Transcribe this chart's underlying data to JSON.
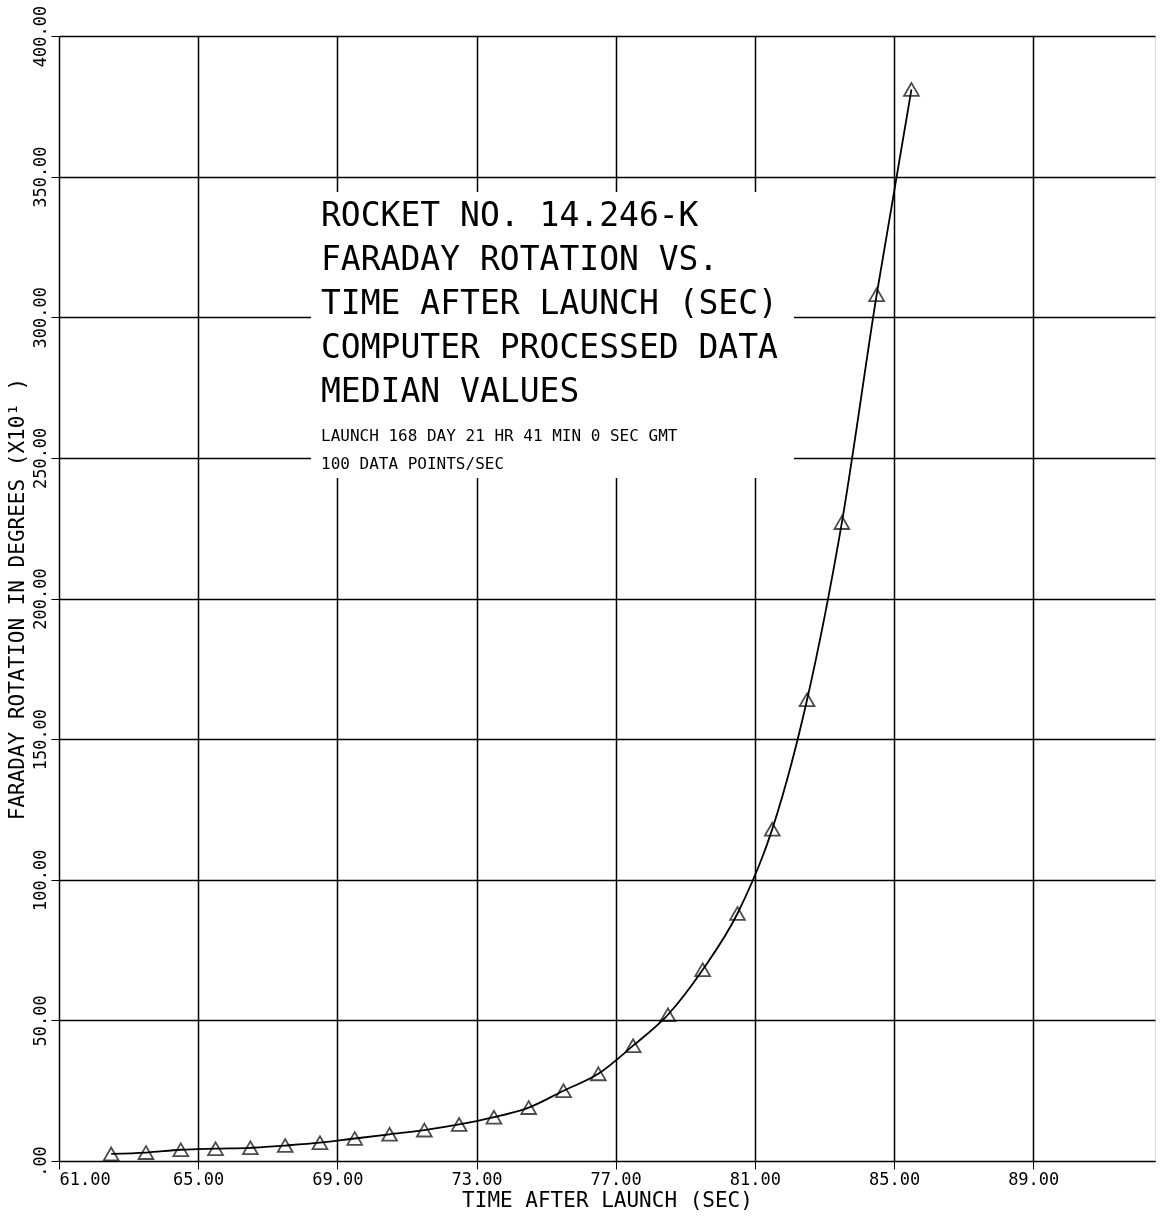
{
  "chart_data": {
    "type": "line",
    "xlabel": "TIME AFTER LAUNCH (SEC)",
    "ylabel": "FARADAY ROTATION IN DEGREES (X10¹ )",
    "annotations": [
      "ROCKET NO. 14.246-K",
      "FARADAY ROTATION VS.",
      "TIME AFTER LAUNCH (SEC)",
      "COMPUTER PROCESSED DATA",
      "MEDIAN VALUES",
      "LAUNCH  168 DAY   21 HR   41 MIN    0 SEC GMT",
      "100 DATA POINTS/SEC"
    ],
    "x": [
      62.5,
      63.5,
      64.5,
      65.5,
      66.5,
      67.5,
      68.5,
      69.5,
      70.5,
      71.5,
      72.5,
      73.5,
      74.5,
      75.5,
      76.5,
      77.5,
      78.5,
      79.5,
      80.5,
      81.5,
      82.5,
      83.5,
      84.5,
      85.5
    ],
    "series": [
      {
        "color": "#000000",
        "values": [
          2.5,
          3,
          4,
          4.4,
          4.7,
          5.5,
          6.5,
          8,
          9.5,
          11,
          13,
          15.6,
          19,
          25,
          31,
          41,
          52,
          68,
          88,
          118,
          164,
          227,
          308,
          381
        ]
      }
    ],
    "xlim": [
      61,
      92.5
    ],
    "ylim": [
      0,
      400
    ],
    "xticks": [
      {
        "value": 61,
        "label": "61.00"
      },
      {
        "value": 65,
        "label": "65.00"
      },
      {
        "value": 69,
        "label": "69.00"
      },
      {
        "value": 73,
        "label": "73.00"
      },
      {
        "value": 77,
        "label": "77.00"
      },
      {
        "value": 81,
        "label": "81.00"
      },
      {
        "value": 85,
        "label": "85.00"
      },
      {
        "value": 89,
        "label": "89.00"
      }
    ],
    "yticks": [
      {
        "value": 0,
        "label": ".00"
      },
      {
        "value": 50,
        "label": "50.00"
      },
      {
        "value": 100,
        "label": "100.00"
      },
      {
        "value": 150,
        "label": "150.00"
      },
      {
        "value": 200,
        "label": "200.00"
      },
      {
        "value": 250,
        "label": "250.00"
      },
      {
        "value": 300,
        "label": "300.00"
      },
      {
        "value": 350,
        "label": "350.00"
      },
      {
        "value": 400,
        "label": "400.00"
      }
    ],
    "grid": true,
    "marker": "triangle",
    "line_style": "solid"
  }
}
